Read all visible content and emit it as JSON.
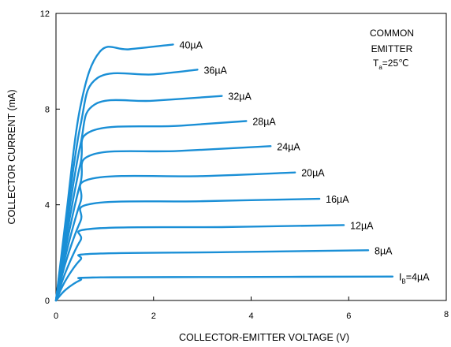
{
  "chart_data": {
    "type": "line",
    "title": "",
    "xlabel": "COLLECTOR-EMITTER VOLTAGE   (V)",
    "ylabel": "COLLECTOR CURRENT  (mA)",
    "xlim": [
      0,
      8
    ],
    "ylim": [
      0,
      12
    ],
    "x_ticks": [
      "0",
      "2",
      "4",
      "6",
      "8"
    ],
    "y_ticks": [
      "0",
      "4",
      "8",
      "12"
    ],
    "grid": false,
    "line_color": "#1a8fd6",
    "annotation": {
      "line1": "COMMON",
      "line2": "EMITTER",
      "line3_main": "T",
      "line3_sub": "a",
      "line3_rest": "=25℃"
    },
    "series": [
      {
        "name": "4µA",
        "label_main": "I",
        "label_sub": "B",
        "label_rest": "=4µA",
        "x": [
          0,
          0.2,
          0.5,
          0.75,
          3.5,
          6.9
        ],
        "y": [
          0,
          0.45,
          0.85,
          0.96,
          0.98,
          1.0
        ]
      },
      {
        "name": "8µA",
        "label": "8µA",
        "x": [
          0,
          0.2,
          0.5,
          0.75,
          3.5,
          6.4
        ],
        "y": [
          0,
          0.85,
          1.7,
          1.95,
          2.02,
          2.1
        ]
      },
      {
        "name": "12µA",
        "label": "12µA",
        "x": [
          0,
          0.2,
          0.5,
          0.75,
          3.5,
          5.9
        ],
        "y": [
          0,
          1.2,
          2.5,
          3.0,
          3.07,
          3.15
        ]
      },
      {
        "name": "16µA",
        "label": "16µA",
        "x": [
          0,
          0.2,
          0.5,
          0.75,
          3.0,
          5.4
        ],
        "y": [
          0,
          1.6,
          3.3,
          4.05,
          4.15,
          4.25
        ]
      },
      {
        "name": "20µA",
        "label": "20µA",
        "x": [
          0,
          0.2,
          0.5,
          0.75,
          3.0,
          4.9
        ],
        "y": [
          0,
          1.9,
          4.1,
          5.1,
          5.2,
          5.35
        ]
      },
      {
        "name": "24µA",
        "label": "24µA",
        "x": [
          0,
          0.2,
          0.5,
          0.75,
          2.5,
          4.4
        ],
        "y": [
          0,
          2.2,
          4.9,
          6.1,
          6.25,
          6.45
        ]
      },
      {
        "name": "28µA",
        "label": "28µA",
        "x": [
          0,
          0.2,
          0.5,
          0.75,
          2.5,
          3.9
        ],
        "y": [
          0,
          2.5,
          5.7,
          7.1,
          7.3,
          7.5
        ]
      },
      {
        "name": "32µA",
        "label": "32µA",
        "x": [
          0,
          0.2,
          0.5,
          0.8,
          2.0,
          3.4
        ],
        "y": [
          0,
          2.8,
          6.5,
          8.2,
          8.35,
          8.55
        ]
      },
      {
        "name": "36µA",
        "label": "36µA",
        "x": [
          0,
          0.2,
          0.5,
          0.85,
          2.0,
          2.9
        ],
        "y": [
          0,
          3.1,
          7.3,
          9.3,
          9.45,
          9.65
        ]
      },
      {
        "name": "40µA",
        "label": "40µA",
        "x": [
          0,
          0.2,
          0.5,
          0.9,
          1.5,
          2.4
        ],
        "y": [
          0,
          3.4,
          8.1,
          10.4,
          10.5,
          10.7
        ]
      }
    ]
  }
}
